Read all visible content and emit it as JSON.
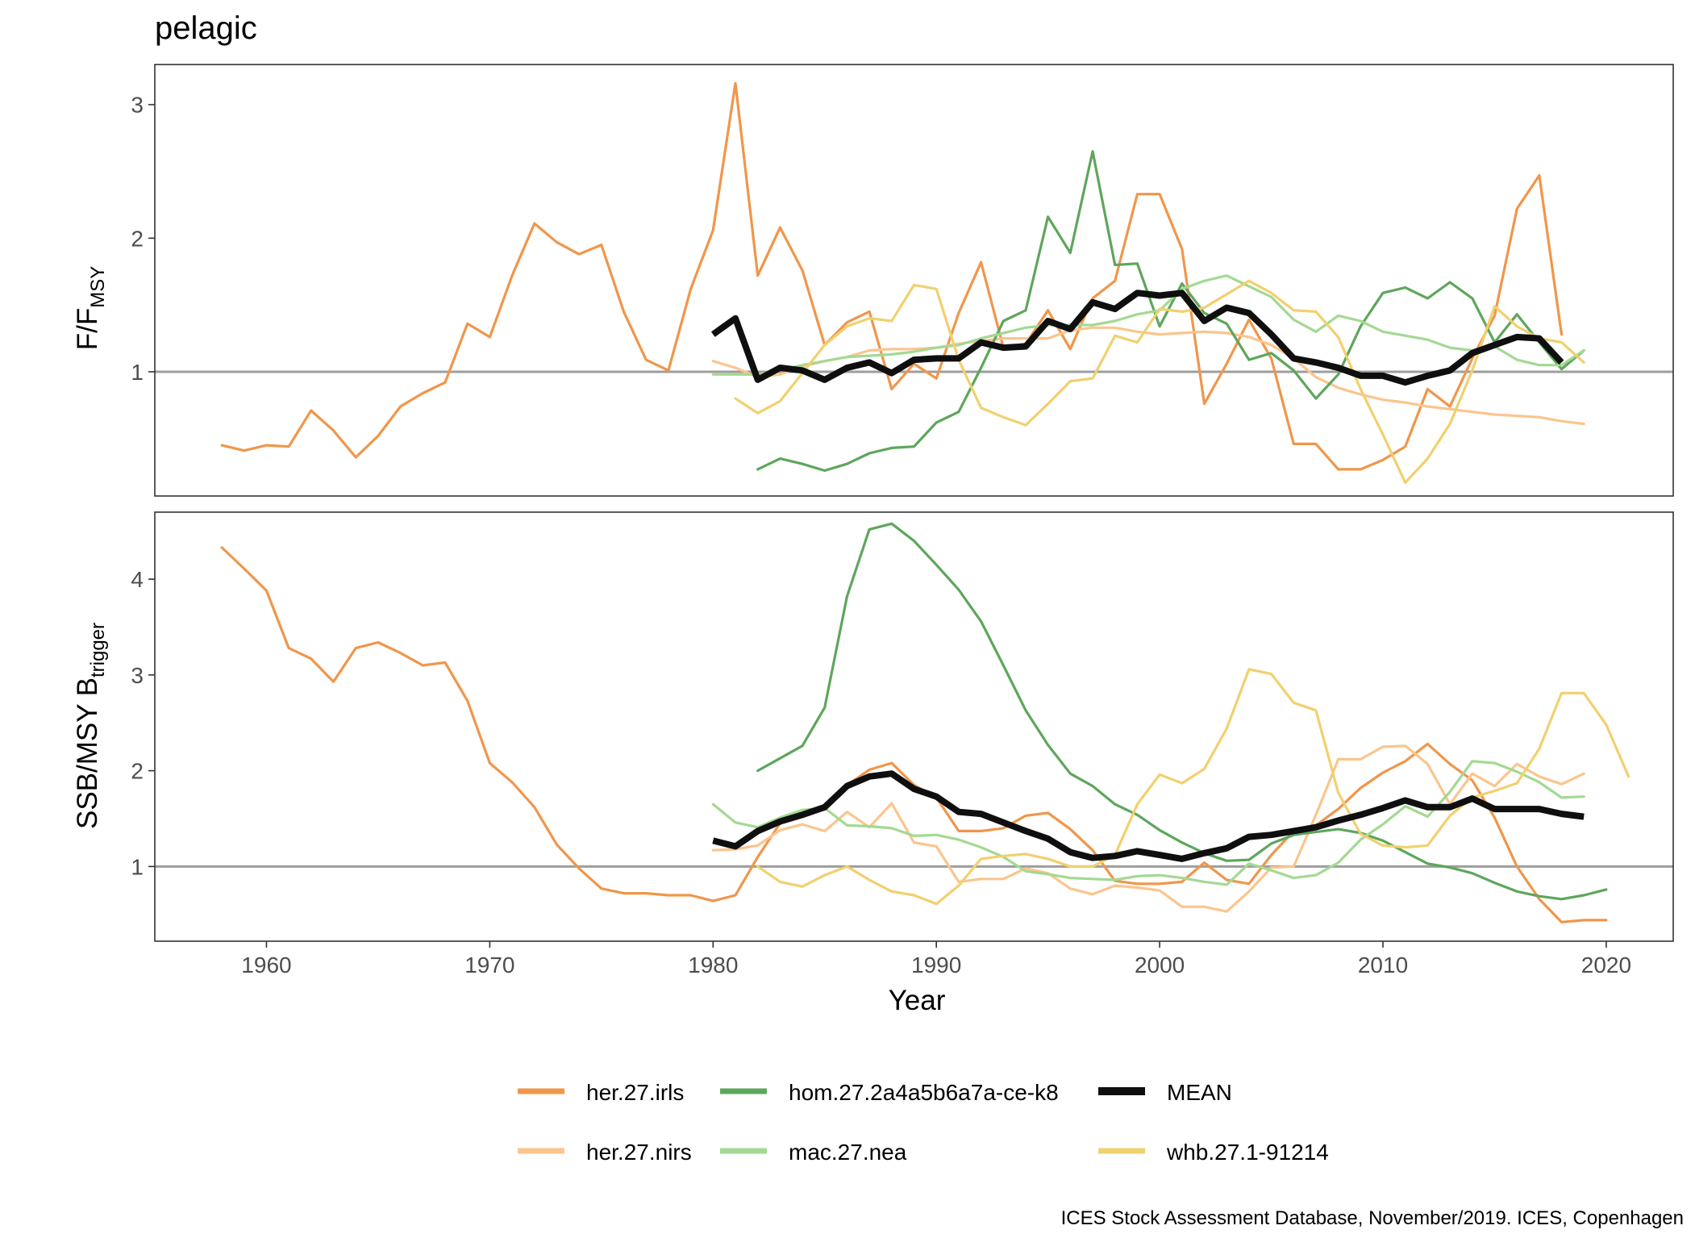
{
  "title": "pelagic",
  "caption": "ICES Stock Assessment Database, November/2019. ICES, Copenhagen",
  "colors": {
    "her.27.irls": "#F0964A",
    "her.27.nirs": "#FBC58D",
    "hom.27.2a4a5b6a7a-ce-k8": "#5EA65C",
    "mac.27.nea": "#A3D993",
    "whb.27.1-91214": "#F1D06E",
    "MEAN": "#0f0f0f",
    "reference": "#9e9e9e"
  },
  "legend": {
    "entries": [
      {
        "key": "her.27.irls",
        "label": "her.27.irls"
      },
      {
        "key": "hom.27.2a4a5b6a7a-ce-k8",
        "label": "hom.27.2a4a5b6a7a-ce-k8"
      },
      {
        "key": "MEAN",
        "label": "MEAN"
      },
      {
        "key": "her.27.nirs",
        "label": "her.27.nirs"
      },
      {
        "key": "mac.27.nea",
        "label": "mac.27.nea"
      },
      {
        "key": "whb.27.1-91214",
        "label": "whb.27.1-91214"
      }
    ]
  },
  "chart_data": [
    {
      "type": "line",
      "panel": "F/F_MSY",
      "ylabel_main": "F/F",
      "ylabel_sub": "MSY",
      "xlim": [
        1955,
        2023
      ],
      "ylim": [
        0.07,
        3.3
      ],
      "yticks": [
        1,
        2,
        3
      ],
      "reference_line": 1,
      "grid": false,
      "series": [
        {
          "name": "her.27.irls",
          "x0": 1958,
          "values": [
            0.45,
            0.41,
            0.45,
            0.44,
            0.71,
            0.56,
            0.36,
            0.52,
            0.74,
            0.84,
            0.92,
            1.36,
            1.26,
            1.72,
            2.11,
            1.97,
            1.88,
            1.95,
            1.45,
            1.09,
            1.01,
            1.62,
            2.06,
            3.16,
            1.72,
            2.08,
            1.76,
            1.2,
            1.37,
            1.45,
            0.87,
            1.06,
            0.95,
            1.44,
            1.82,
            1.18,
            1.21,
            1.46,
            1.17,
            1.55,
            1.68,
            2.33,
            2.33,
            1.92,
            0.76,
            1.06,
            1.39,
            1.1,
            0.46,
            0.46,
            0.27,
            0.27,
            0.34,
            0.44,
            0.87,
            0.74,
            1.1,
            1.42,
            2.22,
            2.47,
            1.28
          ]
        },
        {
          "name": "her.27.nirs",
          "x0": 1980,
          "values": [
            1.08,
            1.03,
            0.96,
            0.98,
            1.04,
            1.08,
            1.11,
            1.16,
            1.17,
            1.17,
            1.18,
            1.21,
            1.23,
            1.25,
            1.25,
            1.25,
            1.31,
            1.33,
            1.33,
            1.3,
            1.28,
            1.29,
            1.3,
            1.29,
            1.26,
            1.2,
            1.1,
            0.96,
            0.88,
            0.83,
            0.79,
            0.77,
            0.74,
            0.72,
            0.7,
            0.68,
            0.67,
            0.66,
            0.63,
            0.61
          ]
        },
        {
          "name": "hom.27.2a4a5b6a7a-ce-k8",
          "x0": 1982,
          "values": [
            0.27,
            0.35,
            0.31,
            0.26,
            0.31,
            0.39,
            0.43,
            0.44,
            0.62,
            0.7,
            1.03,
            1.38,
            1.46,
            2.16,
            1.89,
            2.65,
            1.8,
            1.81,
            1.34,
            1.66,
            1.44,
            1.36,
            1.09,
            1.14,
            1.01,
            0.8,
            0.98,
            1.34,
            1.59,
            1.63,
            1.55,
            1.67,
            1.55,
            1.22,
            1.43,
            1.22,
            1.02,
            1.16
          ]
        },
        {
          "name": "mac.27.nea",
          "x0": 1980,
          "values": [
            0.98,
            0.98,
            0.98,
            1.01,
            1.05,
            1.08,
            1.11,
            1.12,
            1.13,
            1.15,
            1.18,
            1.2,
            1.25,
            1.29,
            1.33,
            1.35,
            1.35,
            1.35,
            1.38,
            1.43,
            1.46,
            1.62,
            1.68,
            1.72,
            1.64,
            1.56,
            1.39,
            1.3,
            1.42,
            1.38,
            1.3,
            1.27,
            1.24,
            1.18,
            1.16,
            1.19,
            1.09,
            1.05,
            1.05,
            1.16
          ]
        },
        {
          "name": "whb.27.1-91214",
          "x0": 1981,
          "values": [
            0.8,
            0.69,
            0.78,
            0.99,
            1.2,
            1.34,
            1.4,
            1.38,
            1.65,
            1.62,
            1.09,
            0.73,
            0.66,
            0.6,
            0.76,
            0.93,
            0.95,
            1.27,
            1.22,
            1.47,
            1.45,
            1.48,
            1.58,
            1.68,
            1.59,
            1.46,
            1.45,
            1.26,
            0.87,
            0.53,
            0.17,
            0.35,
            0.61,
            1.01,
            1.49,
            1.34,
            1.25,
            1.22,
            1.07
          ]
        },
        {
          "name": "MEAN",
          "x0": 1980,
          "values": [
            1.28,
            1.4,
            0.94,
            1.03,
            1.01,
            0.94,
            1.03,
            1.07,
            0.99,
            1.09,
            1.1,
            1.1,
            1.22,
            1.18,
            1.19,
            1.38,
            1.32,
            1.52,
            1.47,
            1.59,
            1.57,
            1.59,
            1.38,
            1.48,
            1.44,
            1.28,
            1.1,
            1.07,
            1.03,
            0.97,
            0.97,
            0.92,
            0.97,
            1.01,
            1.14,
            1.2,
            1.26,
            1.25,
            1.07
          ]
        }
      ]
    },
    {
      "type": "line",
      "panel": "SSB/MSY B_trigger",
      "ylabel_main": "SSB/MSY B",
      "ylabel_sub": "trigger",
      "xlabel": "Year",
      "xlim": [
        1955,
        2023
      ],
      "ylim": [
        0.22,
        4.7
      ],
      "yticks": [
        1,
        2,
        3,
        4
      ],
      "xticks": [
        1960,
        1970,
        1980,
        1990,
        2000,
        2010,
        2020
      ],
      "reference_line": 1,
      "grid": false,
      "series": [
        {
          "name": "her.27.irls",
          "x0": 1958,
          "values": [
            4.33,
            4.11,
            3.88,
            3.28,
            3.17,
            2.93,
            3.28,
            3.34,
            3.23,
            3.1,
            3.13,
            2.73,
            2.08,
            1.88,
            1.62,
            1.23,
            0.98,
            0.77,
            0.72,
            0.72,
            0.7,
            0.7,
            0.64,
            0.7,
            1.1,
            1.45,
            1.52,
            1.63,
            1.85,
            2.01,
            2.08,
            1.85,
            1.72,
            1.37,
            1.37,
            1.4,
            1.53,
            1.56,
            1.39,
            1.17,
            0.85,
            0.82,
            0.82,
            0.84,
            1.04,
            0.86,
            0.82,
            1.12,
            1.37,
            1.43,
            1.6,
            1.82,
            1.98,
            2.1,
            2.28,
            2.07,
            1.9,
            1.51,
            1.0,
            0.66,
            0.42,
            0.44,
            0.44
          ]
        },
        {
          "name": "her.27.nirs",
          "x0": 1980,
          "values": [
            1.17,
            1.18,
            1.22,
            1.38,
            1.44,
            1.37,
            1.57,
            1.41,
            1.66,
            1.25,
            1.21,
            0.84,
            0.87,
            0.87,
            0.98,
            0.93,
            0.77,
            0.71,
            0.8,
            0.78,
            0.75,
            0.58,
            0.58,
            0.53,
            0.74,
            0.99,
            1.0,
            1.54,
            2.12,
            2.12,
            2.25,
            2.26,
            2.07,
            1.65,
            1.97,
            1.84,
            2.07,
            1.94,
            1.86,
            1.97
          ]
        },
        {
          "name": "hom.27.2a4a5b6a7a-ce-k8",
          "x0": 1982,
          "values": [
            2.0,
            2.13,
            2.26,
            2.66,
            3.82,
            4.52,
            4.58,
            4.4,
            4.15,
            3.89,
            3.56,
            3.1,
            2.63,
            2.27,
            1.97,
            1.84,
            1.65,
            1.54,
            1.38,
            1.25,
            1.14,
            1.06,
            1.07,
            1.24,
            1.33,
            1.36,
            1.39,
            1.35,
            1.27,
            1.15,
            1.03,
            0.99,
            0.93,
            0.83,
            0.74,
            0.69,
            0.66,
            0.7,
            0.76
          ]
        },
        {
          "name": "mac.27.nea",
          "x0": 1980,
          "values": [
            1.65,
            1.46,
            1.41,
            1.51,
            1.59,
            1.61,
            1.43,
            1.42,
            1.4,
            1.32,
            1.33,
            1.28,
            1.2,
            1.1,
            0.95,
            0.92,
            0.88,
            0.87,
            0.86,
            0.9,
            0.91,
            0.88,
            0.84,
            0.81,
            1.03,
            0.96,
            0.88,
            0.91,
            1.04,
            1.28,
            1.44,
            1.63,
            1.52,
            1.78,
            2.1,
            2.08,
            1.99,
            1.88,
            1.72,
            1.73
          ]
        },
        {
          "name": "whb.27.1-91214",
          "x0": 1982,
          "values": [
            1.0,
            0.84,
            0.79,
            0.91,
            1.0,
            0.86,
            0.74,
            0.7,
            0.61,
            0.8,
            1.08,
            1.11,
            1.13,
            1.08,
            1.0,
            1.0,
            1.12,
            1.65,
            1.96,
            1.87,
            2.02,
            2.44,
            3.06,
            3.01,
            2.71,
            2.63,
            1.77,
            1.34,
            1.22,
            1.2,
            1.22,
            1.53,
            1.72,
            1.79,
            1.87,
            2.23,
            2.81,
            2.81,
            2.48,
            1.94
          ]
        },
        {
          "name": "MEAN",
          "x0": 1980,
          "values": [
            1.27,
            1.21,
            1.37,
            1.47,
            1.54,
            1.62,
            1.84,
            1.94,
            1.97,
            1.81,
            1.73,
            1.57,
            1.55,
            1.46,
            1.37,
            1.29,
            1.15,
            1.09,
            1.11,
            1.16,
            1.12,
            1.08,
            1.14,
            1.19,
            1.31,
            1.33,
            1.37,
            1.41,
            1.48,
            1.54,
            1.61,
            1.69,
            1.62,
            1.62,
            1.71,
            1.6,
            1.6,
            1.6,
            1.55,
            1.52
          ]
        }
      ]
    }
  ]
}
